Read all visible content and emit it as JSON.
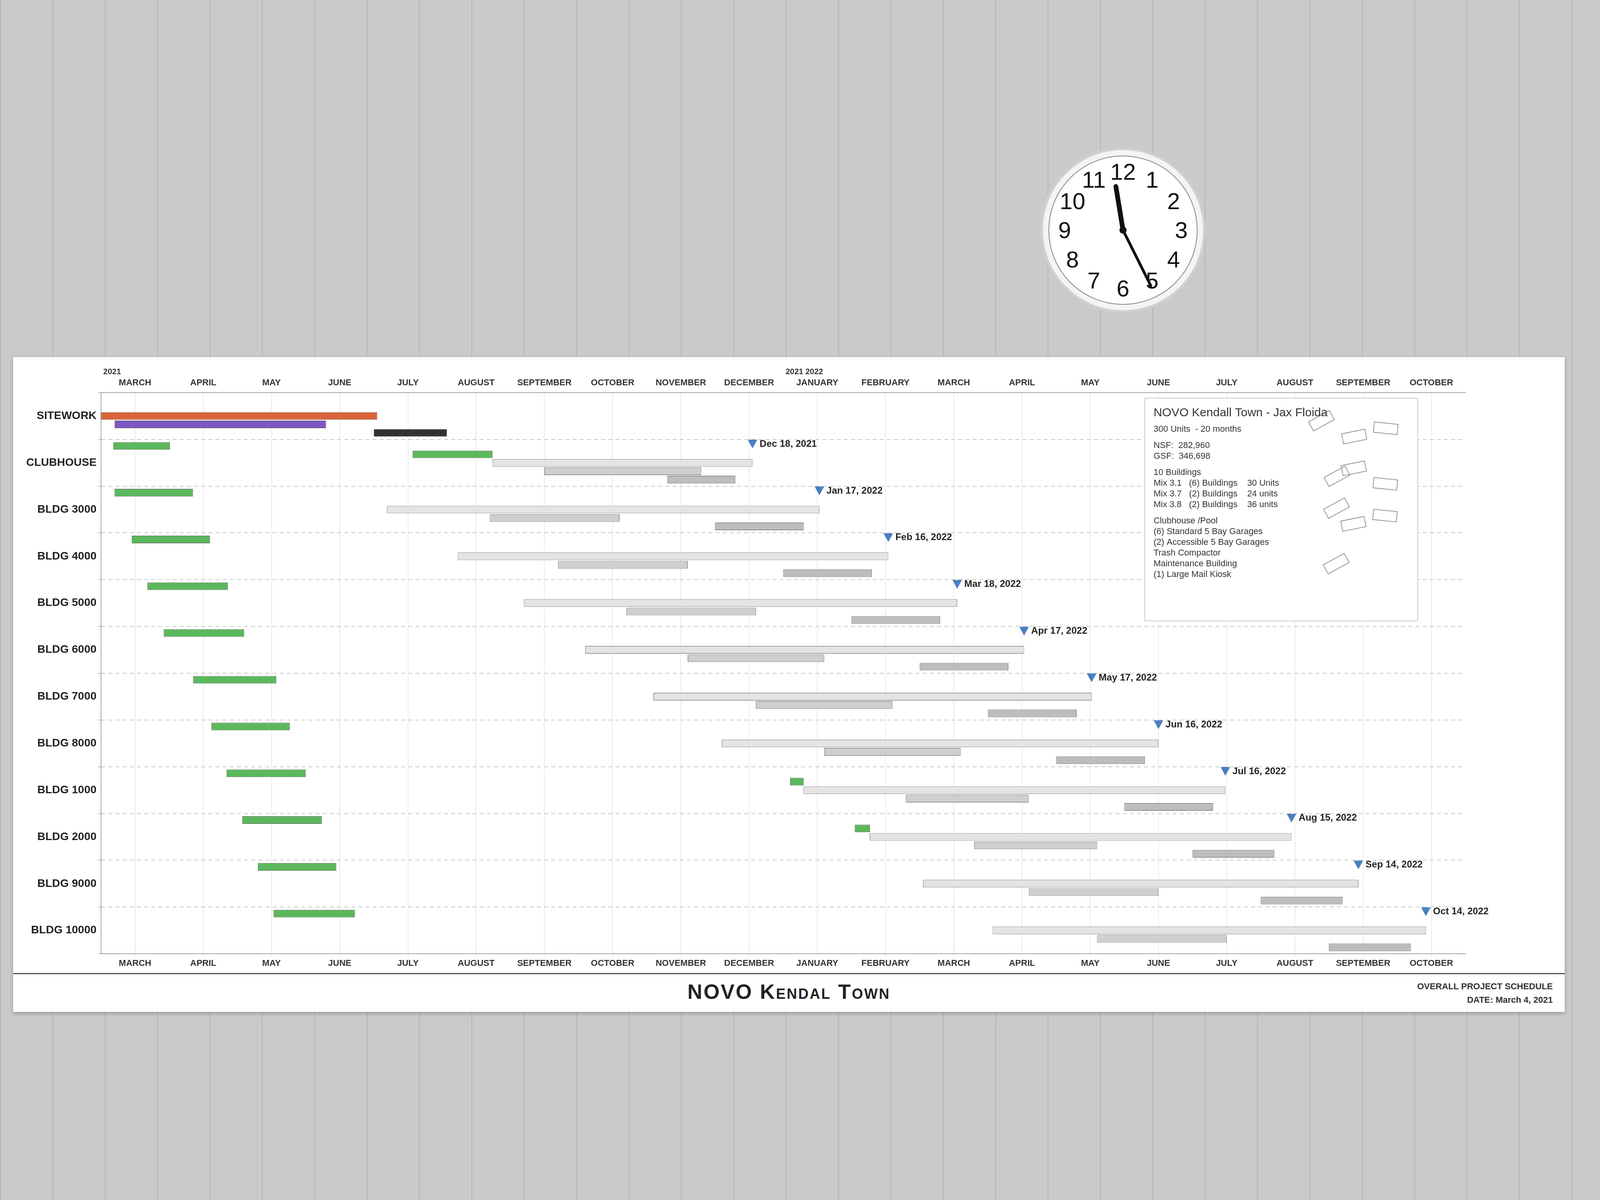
{
  "chart_data": {
    "type": "bar",
    "orientation": "horizontal",
    "title": "NOVO Kendal Town",
    "subtitle": "OVERALL PROJECT SCHEDULE",
    "date_note": "DATE: March 4, 2021",
    "grid": true,
    "categories": [
      "SITEWORK",
      "CLUBHOUSE",
      "BLDG 3000",
      "BLDG 4000",
      "BLDG 5000",
      "BLDG 6000",
      "BLDG 7000",
      "BLDG 8000",
      "BLDG 1000",
      "BLDG 2000",
      "BLDG 9000",
      "BLDG 10000"
    ],
    "series": [
      {
        "color": "#5cb85c",
        "values": [
          null,
          [
            0.18,
            1.01
          ],
          [
            0.2,
            1.35
          ],
          [
            0.45,
            1.6
          ],
          [
            0.68,
            1.86
          ],
          [
            0.92,
            2.1
          ],
          [
            1.35,
            2.57
          ],
          [
            1.62,
            2.77
          ],
          [
            1.84,
            3.0
          ],
          [
            2.07,
            3.24
          ],
          [
            2.3,
            3.45
          ],
          [
            2.53,
            3.72
          ]
        ]
      },
      {
        "color": "#5cb85c",
        "values": [
          null,
          [
            4.57,
            5.74
          ],
          null,
          null,
          null,
          null,
          null,
          null,
          [
            10.1,
            10.3
          ],
          [
            11.05,
            11.27
          ],
          null,
          null
        ]
      },
      {
        "colors": [
          "#d9643a",
          "#e4e4e4",
          "#e4e4e4",
          "#e4e4e4",
          "#e4e4e4",
          "#e4e4e4",
          "#e4e4e4",
          "#e4e4e4",
          "#e4e4e4",
          "#e4e4e4",
          "#e4e4e4",
          "#e4e4e4"
        ],
        "values": [
          [
            0,
            4.05
          ],
          [
            5.74,
            9.55
          ],
          [
            4.19,
            10.53
          ],
          [
            5.23,
            11.54
          ],
          [
            6.2,
            12.55
          ],
          [
            7.1,
            13.53
          ],
          [
            8.1,
            14.52
          ],
          [
            9.1,
            15.5
          ],
          [
            10.3,
            16.48
          ],
          [
            11.27,
            17.45
          ],
          [
            12.05,
            18.43
          ],
          [
            13.07,
            19.42
          ]
        ]
      },
      {
        "colors": [
          "#7e57c2",
          "#cfcfcf",
          "#cfcfcf",
          "#cfcfcf",
          "#cfcfcf",
          "#cfcfcf",
          "#cfcfcf",
          "#cfcfcf",
          "#cfcfcf",
          "#cfcfcf",
          "#cfcfcf",
          "#cfcfcf"
        ],
        "values": [
          [
            0.2,
            3.3
          ],
          [
            6.5,
            8.8
          ],
          [
            5.7,
            7.6
          ],
          [
            6.7,
            8.6
          ],
          [
            7.7,
            9.6
          ],
          [
            8.6,
            10.6
          ],
          [
            9.6,
            11.6
          ],
          [
            10.6,
            12.6
          ],
          [
            11.8,
            13.6
          ],
          [
            12.8,
            14.6
          ],
          [
            13.6,
            15.5
          ],
          [
            14.6,
            16.5
          ]
        ]
      },
      {
        "colors": [
          "#333333",
          "#bdbdbd",
          "#bdbdbd",
          "#bdbdbd",
          "#bdbdbd",
          "#bdbdbd",
          "#bdbdbd",
          "#bdbdbd",
          "#bdbdbd",
          "#bdbdbd",
          "#bdbdbd",
          "#bdbdbd"
        ],
        "values": [
          [
            4.0,
            5.07
          ],
          [
            8.3,
            9.3
          ],
          [
            9.0,
            10.3
          ],
          [
            10.0,
            11.3
          ],
          [
            11.0,
            12.3
          ],
          [
            12.0,
            13.3
          ],
          [
            13.0,
            14.3
          ],
          [
            14.0,
            15.3
          ],
          [
            15.0,
            16.3
          ],
          [
            16.0,
            17.2
          ],
          [
            17.0,
            18.2
          ],
          [
            18.0,
            19.2
          ]
        ]
      }
    ],
    "xlim": [
      0,
      20
    ],
    "xticks": [
      {
        "value": 0.5,
        "label": "MARCH"
      },
      {
        "value": 1.5,
        "label": "APRIL"
      },
      {
        "value": 2.5,
        "label": "MAY"
      },
      {
        "value": 3.5,
        "label": "JUNE"
      },
      {
        "value": 4.5,
        "label": "JULY"
      },
      {
        "value": 5.5,
        "label": "AUGUST"
      },
      {
        "value": 6.5,
        "label": "SEPTEMBER"
      },
      {
        "value": 7.5,
        "label": "OCTOBER"
      },
      {
        "value": 8.5,
        "label": "NOVEMBER"
      },
      {
        "value": 9.5,
        "label": "DECEMBER"
      },
      {
        "value": 10.5,
        "label": "JANUARY"
      },
      {
        "value": 11.5,
        "label": "FEBRUARY"
      },
      {
        "value": 12.5,
        "label": "MARCH"
      },
      {
        "value": 13.5,
        "label": "APRIL"
      },
      {
        "value": 14.5,
        "label": "MAY"
      },
      {
        "value": 15.5,
        "label": "JUNE"
      },
      {
        "value": 16.5,
        "label": "JULY"
      },
      {
        "value": 17.5,
        "label": "AUGUST"
      },
      {
        "value": 18.5,
        "label": "SEPTEMBER"
      },
      {
        "value": 19.5,
        "label": "OCTOBER"
      }
    ],
    "annotations": [
      {
        "text": "2021",
        "x": 0
      },
      {
        "text": "2021 2022",
        "x": 10
      }
    ],
    "milestones": [
      {
        "category": "CLUBHOUSE",
        "x": 9.55,
        "label": "Dec 18, 2021"
      },
      {
        "category": "BLDG 3000",
        "x": 10.53,
        "label": "Jan 17, 2022"
      },
      {
        "category": "BLDG 4000",
        "x": 11.54,
        "label": "Feb 16, 2022"
      },
      {
        "category": "BLDG 5000",
        "x": 12.55,
        "label": "Mar 18, 2022"
      },
      {
        "category": "BLDG 6000",
        "x": 13.53,
        "label": "Apr 17, 2022"
      },
      {
        "category": "BLDG 7000",
        "x": 14.52,
        "label": "May 17, 2022"
      },
      {
        "category": "BLDG 8000",
        "x": 15.5,
        "label": "Jun 16, 2022"
      },
      {
        "category": "BLDG 1000",
        "x": 16.48,
        "label": "Jul 16, 2022"
      },
      {
        "category": "BLDG 2000",
        "x": 17.45,
        "label": "Aug 15, 2022"
      },
      {
        "category": "BLDG 9000",
        "x": 18.43,
        "label": "Sep 14, 2022"
      },
      {
        "category": "BLDG 10000",
        "x": 19.42,
        "label": "Oct 14, 2022"
      }
    ],
    "info_box": {
      "title": "NOVO Kendall Town - Jax Floida",
      "groups": [
        [
          "300 Units  - 20 months"
        ],
        [
          "NSF:  282,960",
          "GSF:  346,698"
        ],
        [
          "10 Buildings",
          "Mix 3.1   (6) Buildings    30 Units",
          "Mix 3.7   (2) Buildings    24 units",
          "Mix 3.8   (2) Buildings    36 units"
        ],
        [
          "Clubhouse /Pool",
          "(6) Standard 5 Bay Garages",
          "(2) Accessible 5 Bay Garages",
          "Trash Compactor",
          "Maintenance Building",
          "(1) Large Mail Kiosk"
        ]
      ]
    },
    "clock": {
      "numerals": [
        12,
        1,
        2,
        3,
        4,
        5,
        6,
        7,
        8,
        9,
        10,
        11
      ]
    }
  }
}
